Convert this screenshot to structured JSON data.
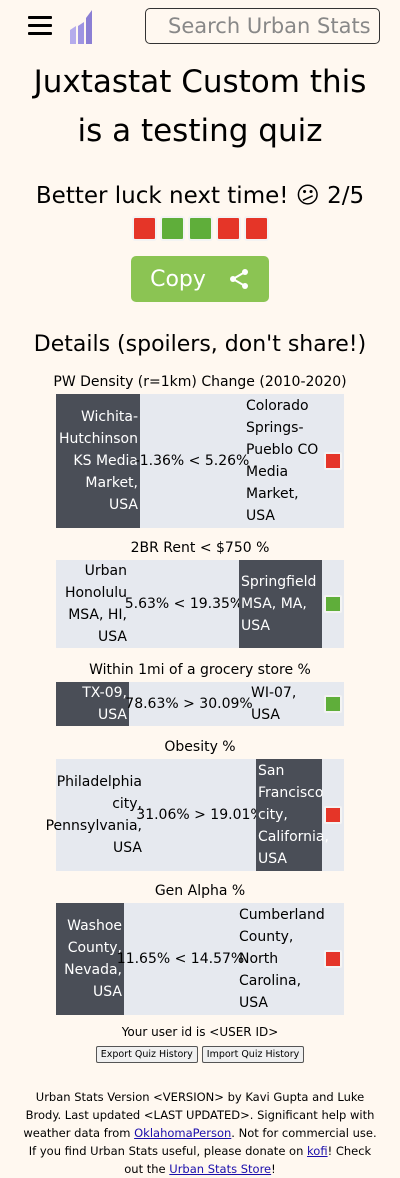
{
  "header": {
    "search_placeholder": "Search Urban Stats",
    "accent_color": "#8b7fd4"
  },
  "title": "Juxtastat Custom this is a testing quiz",
  "result": {
    "text": "Better luck next time! 😕 2/5",
    "pattern": [
      "red",
      "green",
      "green",
      "red",
      "red"
    ]
  },
  "copy_label": "Copy",
  "details_title": "Details (spoilers, don't share!)",
  "questions": [
    {
      "label": "PW Density (r=1km) Change (2010-2020)",
      "left": "Wichita-Hutchinson KS Media Market, USA",
      "comparison": "-1.36% < 5.26%",
      "right": "Colorado Springs-Pueblo CO Media Market, USA",
      "answered": "left",
      "correct": false
    },
    {
      "label": "2BR Rent < $750 %",
      "left": "Urban Honolulu MSA, HI, USA",
      "comparison": "5.63% < 19.35%",
      "right": "Springfield MSA, MA, USA",
      "answered": "right",
      "correct": true
    },
    {
      "label": "Within 1mi of a grocery store %",
      "left": "TX-09, USA",
      "comparison": "78.63% > 30.09%",
      "right": "WI-07, USA",
      "answered": "left",
      "correct": true
    },
    {
      "label": "Obesity %",
      "left": "Philadelphia city, Pennsylvania, USA",
      "comparison": "31.06% > 19.01%",
      "right": "San Francisco city, California, USA",
      "answered": "right",
      "correct": false
    },
    {
      "label": "Gen Alpha %",
      "left": "Washoe County, Nevada, USA",
      "comparison": "11.65% < 14.57%",
      "right": "Cumberland County, North Carolina, USA",
      "answered": "left",
      "correct": false
    }
  ],
  "user_id_text": "Your user id is <USER ID>",
  "export_label": "Export Quiz History",
  "import_label": "Import Quiz History",
  "footer": {
    "text1": "Urban Stats Version <VERSION> by Kavi Gupta and Luke Brody. Last updated <LAST UPDATED>. Significant help with weather data from ",
    "link1": "OklahomaPerson",
    "text2": ". Not for commercial use. If you find Urban Stats useful, please donate on ",
    "link2": "kofi",
    "text3": "! Check out the ",
    "link3": "Urban Stats Store",
    "text4": "!"
  },
  "colors": {
    "background": "#fff8f0",
    "copy_button": "#8bc453",
    "answered_cell": "#4a4e57",
    "row_background": "#e6e9ef",
    "correct": "#5fae3a",
    "incorrect": "#e53528"
  }
}
